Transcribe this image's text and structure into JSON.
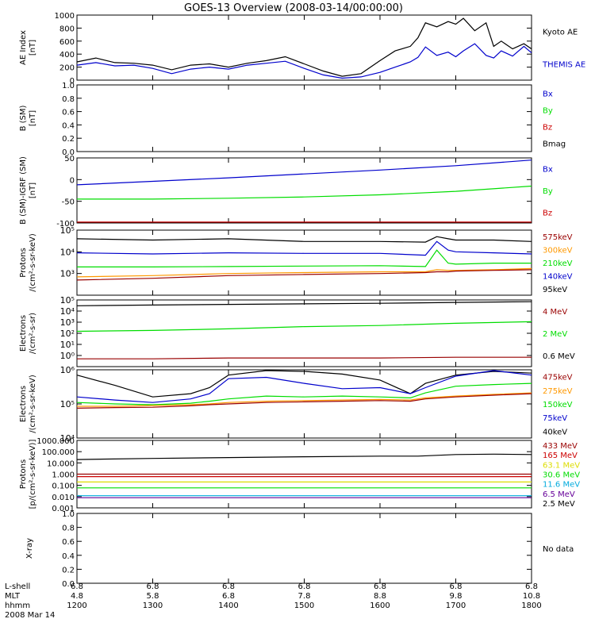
{
  "title": "GOES-13 Overview (2008-03-14/00:00:00)",
  "colors": {
    "black": "#000000",
    "blue": "#0000cc",
    "green": "#00dd00",
    "red": "#cc0000",
    "orange": "#ff9900",
    "yellow": "#dddd00",
    "cyan": "#00aadd",
    "purple": "#660099",
    "darkred": "#990000"
  },
  "footer": {
    "row_labels": [
      "L-shell",
      "MLT",
      "hhmm",
      "2008 Mar 14"
    ],
    "lshell": [
      "6.8",
      "6.8",
      "6.8",
      "6.8",
      "6.8",
      "6.8",
      "6.8"
    ],
    "mlt": [
      "4.8",
      "5.8",
      "6.8",
      "7.8",
      "8.8",
      "9.8",
      "10.8"
    ],
    "hhmm": [
      "1200",
      "1300",
      "1400",
      "1500",
      "1600",
      "1700",
      "1800"
    ]
  },
  "chart_data": [
    {
      "id": "ae",
      "type": "line",
      "ylabel": "AE Index [nT]",
      "ylabel_lines": [
        "AE Index",
        "[nT]"
      ],
      "ylim": [
        0,
        1000
      ],
      "yscale": "linear",
      "yticks": [
        0,
        200,
        400,
        600,
        800,
        1000
      ],
      "ytick_labels": [
        "0",
        "200",
        "400",
        "600",
        "800",
        "1000"
      ],
      "legend": [
        {
          "text": "Kyoto AE",
          "color": "#000000"
        },
        {
          "text": "THEMIS AE",
          "color": "#0000cc"
        }
      ],
      "series": [
        {
          "name": "Kyoto AE",
          "color": "#000000",
          "x": [
            12.0,
            12.25,
            12.5,
            12.75,
            13.0,
            13.25,
            13.5,
            13.75,
            14.0,
            14.25,
            14.5,
            14.75,
            15.0,
            15.25,
            15.5,
            15.75,
            16.0,
            16.2,
            16.4,
            16.5,
            16.6,
            16.75,
            16.9,
            17.0,
            17.1,
            17.25,
            17.4,
            17.5,
            17.6,
            17.75,
            17.9,
            18.0
          ],
          "y": [
            280,
            340,
            270,
            260,
            230,
            160,
            230,
            250,
            200,
            260,
            300,
            360,
            250,
            140,
            60,
            100,
            300,
            450,
            520,
            650,
            880,
            820,
            900,
            860,
            950,
            760,
            880,
            520,
            600,
            480,
            560,
            480
          ]
        },
        {
          "name": "THEMIS AE",
          "color": "#0000cc",
          "x": [
            12.0,
            12.25,
            12.5,
            12.75,
            13.0,
            13.25,
            13.5,
            13.75,
            14.0,
            14.25,
            14.5,
            14.75,
            15.0,
            15.25,
            15.5,
            15.75,
            16.0,
            16.2,
            16.4,
            16.5,
            16.6,
            16.75,
            16.9,
            17.0,
            17.1,
            17.25,
            17.4,
            17.5,
            17.6,
            17.75,
            17.9,
            18.0
          ],
          "y": [
            230,
            270,
            220,
            230,
            180,
            100,
            170,
            200,
            170,
            230,
            260,
            290,
            180,
            80,
            30,
            50,
            120,
            200,
            280,
            350,
            510,
            380,
            430,
            360,
            450,
            560,
            380,
            340,
            450,
            370,
            520,
            420
          ]
        }
      ]
    },
    {
      "id": "bsm",
      "type": "line",
      "ylabel": "B (SM) [nT]",
      "ylabel_lines": [
        "B (SM)",
        "[nT]"
      ],
      "ylim": [
        0,
        1
      ],
      "yscale": "linear",
      "yticks": [
        0,
        0.2,
        0.4,
        0.6,
        0.8,
        1.0
      ],
      "ytick_labels": [
        "0.0",
        "0.2",
        "0.4",
        "0.6",
        "0.8",
        "1.0"
      ],
      "legend": [
        {
          "text": "Bx",
          "color": "#0000cc"
        },
        {
          "text": "By",
          "color": "#00dd00"
        },
        {
          "text": "Bz",
          "color": "#cc0000"
        },
        {
          "text": "Bmag",
          "color": "#000000"
        }
      ],
      "series": []
    },
    {
      "id": "bigrf",
      "type": "line",
      "ylabel": "B (SM)-IGRF (SM) [nT]",
      "ylabel_lines": [
        "B (SM)-IGRF (SM)",
        "[nT]"
      ],
      "ylim": [
        -100,
        50
      ],
      "yscale": "linear",
      "yticks": [
        -100,
        -50,
        0,
        50
      ],
      "ytick_labels": [
        "-100",
        "-50",
        "0",
        "50"
      ],
      "legend": [
        {
          "text": "Bx",
          "color": "#0000cc"
        },
        {
          "text": "By",
          "color": "#00dd00"
        },
        {
          "text": "Bz",
          "color": "#cc0000"
        }
      ],
      "series": [
        {
          "name": "Bx",
          "color": "#0000cc",
          "x": [
            12.0,
            13.0,
            14.0,
            15.0,
            16.0,
            17.0,
            18.0
          ],
          "y": [
            -12,
            -4,
            4,
            13,
            22,
            32,
            45
          ]
        },
        {
          "name": "By",
          "color": "#00dd00",
          "x": [
            12.0,
            13.0,
            14.0,
            15.0,
            16.0,
            17.0,
            18.0
          ],
          "y": [
            -45,
            -45,
            -43,
            -40,
            -35,
            -27,
            -15
          ]
        },
        {
          "name": "Bz",
          "color": "#cc0000",
          "x": [
            12.0,
            18.0
          ],
          "y": [
            -98,
            -98
          ]
        }
      ]
    },
    {
      "id": "protons_kev",
      "type": "line",
      "ylabel": "Protons /(cm²-s-sr-keV)",
      "ylabel_lines": [
        "Protons",
        "/(cm²-s-sr-keV)"
      ],
      "ylim": [
        100,
        100000
      ],
      "yscale": "log",
      "yticks": [
        1000,
        10000,
        100000
      ],
      "ytick_labels": [
        "10³",
        "10⁴",
        "10⁵"
      ],
      "legend": [
        {
          "text": "575keV",
          "color": "#990000"
        },
        {
          "text": "300keV",
          "color": "#ff9900"
        },
        {
          "text": "210keV",
          "color": "#00dd00"
        },
        {
          "text": "140keV",
          "color": "#0000cc"
        },
        {
          "text": "95keV",
          "color": "#000000"
        }
      ],
      "series": [
        {
          "name": "95keV",
          "color": "#000000",
          "x": [
            12.0,
            13.0,
            14.0,
            15.0,
            16.0,
            16.6,
            16.75,
            16.9,
            17.0,
            17.5,
            18.0
          ],
          "y": [
            40000,
            35000,
            40000,
            30000,
            30000,
            28000,
            50000,
            40000,
            35000,
            35000,
            30000
          ]
        },
        {
          "name": "140keV",
          "color": "#0000cc",
          "x": [
            12.0,
            13.0,
            14.0,
            15.0,
            16.0,
            16.6,
            16.75,
            16.9,
            17.0,
            17.5,
            18.0
          ],
          "y": [
            9000,
            8000,
            9000,
            8500,
            8500,
            7000,
            30000,
            12000,
            10000,
            9000,
            8000
          ]
        },
        {
          "name": "210keV",
          "color": "#00dd00",
          "x": [
            12.0,
            13.0,
            14.0,
            15.0,
            16.0,
            16.6,
            16.75,
            16.9,
            17.0,
            17.5,
            18.0
          ],
          "y": [
            2000,
            2000,
            2100,
            2200,
            2300,
            2100,
            12000,
            3000,
            2700,
            3000,
            3000
          ]
        },
        {
          "name": "300keV",
          "color": "#ff9900",
          "x": [
            12.0,
            13.0,
            14.0,
            15.0,
            16.0,
            16.6,
            16.75,
            16.9,
            17.0,
            17.5,
            18.0
          ],
          "y": [
            700,
            800,
            1000,
            1100,
            1200,
            1200,
            1500,
            1400,
            1400,
            1500,
            1700
          ]
        },
        {
          "name": "575keV",
          "color": "#990000",
          "x": [
            12.0,
            13.0,
            14.0,
            15.0,
            16.0,
            16.6,
            16.75,
            16.9,
            17.0,
            17.5,
            18.0
          ],
          "y": [
            500,
            600,
            800,
            900,
            1000,
            1100,
            1200,
            1200,
            1300,
            1400,
            1500
          ]
        }
      ]
    },
    {
      "id": "electrons_mev",
      "type": "line",
      "ylabel": "Electrons /(cm²-s-sr)",
      "ylabel_lines": [
        "Electrons",
        "/(cm²-s-sr)"
      ],
      "ylim": [
        0.1,
        100000
      ],
      "yscale": "log",
      "yticks": [
        1,
        10,
        100,
        1000,
        10000,
        100000
      ],
      "ytick_labels": [
        "10⁰",
        "10¹",
        "10²",
        "10³",
        "10⁴",
        "10⁵"
      ],
      "legend": [
        {
          "text": "4 MeV",
          "color": "#990000"
        },
        {
          "text": "2 MeV",
          "color": "#00dd00"
        },
        {
          "text": "0.6 MeV",
          "color": "#000000"
        }
      ],
      "series": [
        {
          "name": "0.6 MeV",
          "color": "#000000",
          "x": [
            12.0,
            13.0,
            14.0,
            15.0,
            16.0,
            17.0,
            18.0
          ],
          "y": [
            30000,
            35000,
            40000,
            45000,
            50000,
            60000,
            70000
          ]
        },
        {
          "name": "2 MeV",
          "color": "#00dd00",
          "x": [
            12.0,
            13.0,
            14.0,
            15.0,
            16.0,
            17.0,
            18.0
          ],
          "y": [
            150,
            180,
            250,
            400,
            500,
            800,
            1100
          ]
        },
        {
          "name": "4 MeV",
          "color": "#990000",
          "x": [
            12.0,
            13.0,
            14.0,
            15.0,
            16.0,
            17.0,
            18.0
          ],
          "y": [
            0.5,
            0.5,
            0.6,
            0.6,
            0.6,
            0.7,
            0.7
          ]
        }
      ]
    },
    {
      "id": "electrons_kev",
      "type": "line",
      "ylabel": "Electrons /(cm²-s-sr-keV)",
      "ylabel_lines": [
        "Electrons",
        "/(cm²-s-sr-keV)"
      ],
      "ylim": [
        10000,
        1000000
      ],
      "yscale": "log",
      "yticks": [
        10000,
        100000,
        1000000
      ],
      "ytick_labels": [
        "10⁴",
        "10⁵",
        "10⁶"
      ],
      "legend": [
        {
          "text": "475keV",
          "color": "#990000"
        },
        {
          "text": "275keV",
          "color": "#ff9900"
        },
        {
          "text": "150keV",
          "color": "#00dd00"
        },
        {
          "text": "75keV",
          "color": "#0000cc"
        },
        {
          "text": "40keV",
          "color": "#000000"
        }
      ],
      "series": [
        {
          "name": "40keV",
          "color": "#000000",
          "x": [
            12.0,
            12.5,
            13.0,
            13.5,
            13.75,
            14.0,
            14.5,
            15.0,
            15.5,
            16.0,
            16.4,
            16.6,
            17.0,
            17.5,
            18.0
          ],
          "y": [
            700000,
            350000,
            160000,
            200000,
            300000,
            700000,
            950000,
            900000,
            750000,
            500000,
            200000,
            400000,
            700000,
            900000,
            800000
          ]
        },
        {
          "name": "75keV",
          "color": "#0000cc",
          "x": [
            12.0,
            12.5,
            13.0,
            13.5,
            13.75,
            14.0,
            14.5,
            15.0,
            15.5,
            16.0,
            16.4,
            16.6,
            17.0,
            17.5,
            18.0
          ],
          "y": [
            160000,
            130000,
            110000,
            140000,
            200000,
            550000,
            600000,
            400000,
            280000,
            300000,
            200000,
            300000,
            650000,
            950000,
            700000
          ]
        },
        {
          "name": "150keV",
          "color": "#00dd00",
          "x": [
            12.0,
            12.5,
            13.0,
            13.5,
            13.75,
            14.0,
            14.5,
            15.0,
            15.5,
            16.0,
            16.4,
            16.6,
            17.0,
            17.5,
            18.0
          ],
          "y": [
            110000,
            100000,
            95000,
            105000,
            120000,
            140000,
            170000,
            160000,
            170000,
            160000,
            150000,
            210000,
            330000,
            370000,
            400000
          ]
        },
        {
          "name": "275keV",
          "color": "#ff9900",
          "x": [
            12.0,
            12.5,
            13.0,
            13.5,
            13.75,
            14.0,
            14.5,
            15.0,
            15.5,
            16.0,
            16.4,
            16.6,
            17.0,
            17.5,
            18.0
          ],
          "y": [
            85000,
            85000,
            90000,
            95000,
            100000,
            110000,
            120000,
            125000,
            130000,
            135000,
            130000,
            150000,
            170000,
            190000,
            210000
          ]
        },
        {
          "name": "475keV",
          "color": "#990000",
          "x": [
            12.0,
            12.5,
            13.0,
            13.5,
            13.75,
            14.0,
            14.5,
            15.0,
            15.5,
            16.0,
            16.4,
            16.6,
            17.0,
            17.5,
            18.0
          ],
          "y": [
            75000,
            78000,
            80000,
            88000,
            95000,
            100000,
            110000,
            115000,
            120000,
            125000,
            120000,
            140000,
            160000,
            180000,
            200000
          ]
        }
      ]
    },
    {
      "id": "protons_mev",
      "type": "line",
      "ylabel": "Protons [p/(cm²-s-sr-keV)]",
      "ylabel_lines": [
        "Protons",
        "[p/(cm²-s-sr-keV)]"
      ],
      "ylim": [
        0.001,
        1000
      ],
      "yscale": "log",
      "yticks": [
        0.001,
        0.01,
        0.1,
        1,
        10,
        100,
        1000
      ],
      "ytick_labels": [
        "0.001",
        "0.010",
        "0.100",
        "1.000",
        "10.000",
        "100.000",
        "1000.000"
      ],
      "legend": [
        {
          "text": "433 MeV",
          "color": "#990000"
        },
        {
          "text": "165 MeV",
          "color": "#cc0000"
        },
        {
          "text": "63.1 MeV",
          "color": "#dddd00"
        },
        {
          "text": "30.6 MeV",
          "color": "#00dd00"
        },
        {
          "text": "11.6 MeV",
          "color": "#00aadd"
        },
        {
          "text": "6.5 MeV",
          "color": "#660099"
        },
        {
          "text": "2.5 MeV",
          "color": "#000000"
        }
      ],
      "series": [
        {
          "name": "2.5 MeV",
          "color": "#000000",
          "x": [
            12.0,
            13.0,
            14.0,
            15.0,
            16.0,
            16.5,
            17.0,
            17.5,
            18.0
          ],
          "y": [
            20,
            25,
            30,
            35,
            40,
            40,
            55,
            60,
            55
          ]
        },
        {
          "name": "433 MeV",
          "color": "#990000",
          "x": [
            12.0,
            18.0
          ],
          "y": [
            1.0,
            1.0
          ]
        },
        {
          "name": "165 MeV",
          "color": "#cc0000",
          "x": [
            12.0,
            18.0
          ],
          "y": [
            0.6,
            0.6
          ]
        },
        {
          "name": "63.1 MeV",
          "color": "#dddd00",
          "x": [
            12.0,
            18.0
          ],
          "y": [
            0.2,
            0.2
          ]
        },
        {
          "name": "30.6 MeV",
          "color": "#00dd00",
          "x": [
            12.0,
            18.0
          ],
          "y": [
            0.06,
            0.06
          ]
        },
        {
          "name": "11.6 MeV",
          "color": "#00aadd",
          "x": [
            12.0,
            18.0
          ],
          "y": [
            0.012,
            0.012
          ]
        },
        {
          "name": "6.5 MeV",
          "color": "#660099",
          "x": [
            12.0,
            18.0
          ],
          "y": [
            0.008,
            0.008
          ]
        }
      ]
    },
    {
      "id": "xray",
      "type": "line",
      "ylabel": "X-ray",
      "ylabel_lines": [
        "X-ray"
      ],
      "ylim": [
        0,
        1
      ],
      "yscale": "linear",
      "yticks": [
        0,
        0.2,
        0.4,
        0.6,
        0.8,
        1.0
      ],
      "ytick_labels": [
        "0.0",
        "0.2",
        "0.4",
        "0.6",
        "0.8",
        "1.0"
      ],
      "legend": [
        {
          "text": "No data",
          "color": "#000000"
        }
      ],
      "series": []
    }
  ]
}
